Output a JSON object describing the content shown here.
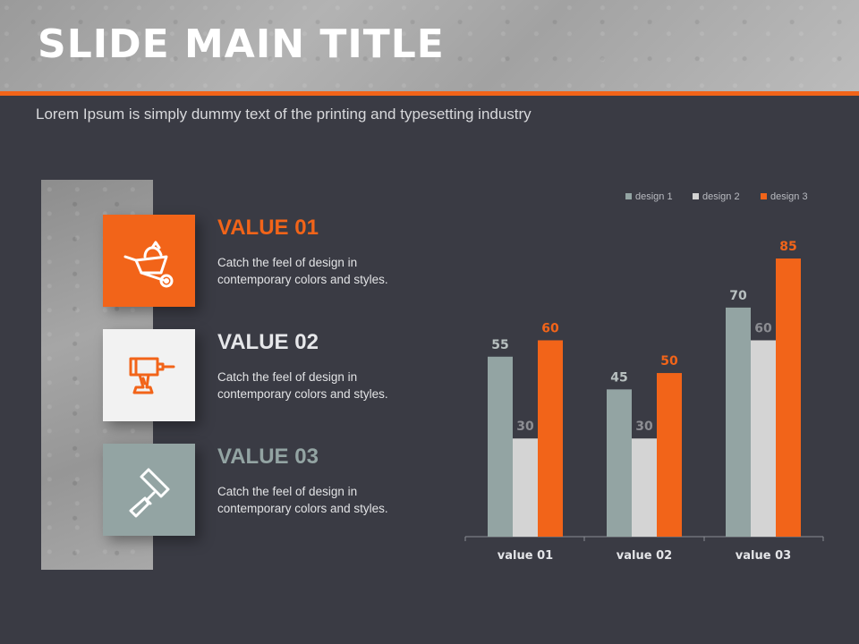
{
  "slide": {
    "title": "SLIDE MAIN TITLE",
    "subtitle": "Lorem Ipsum is simply dummy text of the printing and typesetting industry"
  },
  "items": [
    {
      "title": "VALUE 01",
      "desc": "Catch the feel of design in contemporary colors and styles.",
      "icon": "wheelbarrow-icon",
      "box_color": "#f26419",
      "title_color": "#f26419"
    },
    {
      "title": "VALUE 02",
      "desc": "Catch the feel of design in contemporary colors and styles.",
      "icon": "drill-icon",
      "box_color": "#f2f2f2",
      "title_color": "#e6e7ea"
    },
    {
      "title": "VALUE 03",
      "desc": "Catch the feel of design in contemporary colors and styles.",
      "icon": "paint-roller-icon",
      "box_color": "#93a4a3",
      "title_color": "#93a4a3"
    }
  ],
  "colors": {
    "accent": "#f26419",
    "background": "#3a3b44"
  },
  "chart_data": {
    "type": "bar",
    "categories": [
      "value 01",
      "value 02",
      "value 03"
    ],
    "series": [
      {
        "name": "design 1",
        "values": [
          55,
          45,
          70
        ],
        "color": "#93a4a3",
        "label_color": "#b8c0c0"
      },
      {
        "name": "design 2",
        "values": [
          30,
          30,
          60
        ],
        "color": "#d4d4d4",
        "label_color": "#8c8d92"
      },
      {
        "name": "design 3",
        "values": [
          60,
          50,
          85
        ],
        "color": "#f26419",
        "label_color": "#f26419"
      }
    ],
    "ylim": [
      0,
      85
    ],
    "grid": false,
    "legend_position": "top-right",
    "data_labels": true
  }
}
